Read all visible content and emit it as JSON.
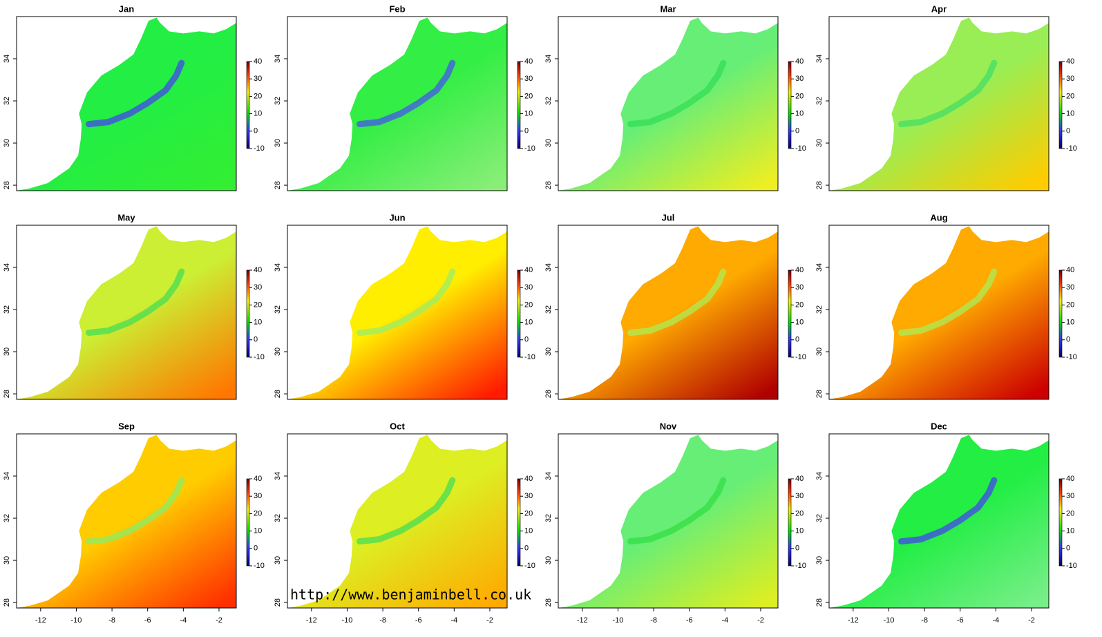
{
  "type": "raster-map-grid",
  "panels": [
    "Jan",
    "Feb",
    "Mar",
    "Apr",
    "May",
    "Jun",
    "Jul",
    "Aug",
    "Sep",
    "Oct",
    "Nov",
    "Dec"
  ],
  "xlim": [
    -13.35,
    -1.03
  ],
  "ylim": [
    27.74,
    36.0
  ],
  "xticks": [
    -12,
    -10,
    -8,
    -6,
    -4,
    -2
  ],
  "yticks": [
    28,
    30,
    32,
    34
  ],
  "legend": {
    "lim": [
      -10,
      40
    ],
    "ticks": [
      -10,
      0,
      10,
      20,
      30,
      40
    ]
  },
  "watermark": "http://www.benjaminbell.co.uk"
}
